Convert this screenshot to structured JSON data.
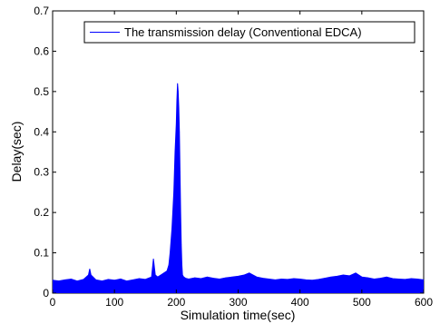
{
  "chart_data": {
    "type": "line",
    "title": "",
    "xlabel": "Simulation time(sec)",
    "ylabel": "Delay(sec)",
    "xlim": [
      0,
      600
    ],
    "ylim": [
      0,
      0.7
    ],
    "x_ticks": [
      "0",
      "100",
      "200",
      "300",
      "400",
      "500",
      "600"
    ],
    "y_ticks": [
      "0",
      "0.1",
      "0.2",
      "0.3",
      "0.4",
      "0.5",
      "0.6",
      "0.7"
    ],
    "grid": false,
    "legend_position": "top-right",
    "series": [
      {
        "name": "The transmission delay (Conventional EDCA)",
        "color": "#0000ff",
        "x": [
          0,
          10,
          20,
          30,
          40,
          50,
          58,
          60,
          62,
          70,
          80,
          90,
          100,
          110,
          120,
          130,
          140,
          150,
          160,
          163,
          166,
          170,
          175,
          180,
          185,
          188,
          190,
          193,
          196,
          198,
          200,
          201,
          202,
          203,
          204,
          205,
          206,
          207,
          208,
          209,
          210,
          212,
          215,
          220,
          230,
          240,
          250,
          260,
          270,
          280,
          290,
          300,
          310,
          318,
          330,
          340,
          350,
          360,
          370,
          380,
          390,
          400,
          410,
          420,
          430,
          440,
          450,
          460,
          470,
          480,
          490,
          500,
          510,
          520,
          530,
          540,
          550,
          560,
          570,
          580,
          590,
          600
        ],
        "y": [
          0.032,
          0.03,
          0.033,
          0.035,
          0.03,
          0.034,
          0.045,
          0.06,
          0.045,
          0.033,
          0.03,
          0.034,
          0.032,
          0.035,
          0.03,
          0.033,
          0.036,
          0.034,
          0.04,
          0.085,
          0.045,
          0.04,
          0.045,
          0.05,
          0.055,
          0.07,
          0.1,
          0.16,
          0.25,
          0.35,
          0.42,
          0.48,
          0.52,
          0.5,
          0.46,
          0.4,
          0.3,
          0.2,
          0.12,
          0.07,
          0.045,
          0.04,
          0.037,
          0.035,
          0.038,
          0.036,
          0.04,
          0.037,
          0.035,
          0.038,
          0.04,
          0.042,
          0.045,
          0.05,
          0.04,
          0.037,
          0.035,
          0.033,
          0.035,
          0.034,
          0.036,
          0.035,
          0.033,
          0.032,
          0.034,
          0.037,
          0.04,
          0.042,
          0.045,
          0.043,
          0.05,
          0.04,
          0.038,
          0.035,
          0.037,
          0.04,
          0.036,
          0.035,
          0.034,
          0.036,
          0.035,
          0.033
        ]
      }
    ]
  }
}
